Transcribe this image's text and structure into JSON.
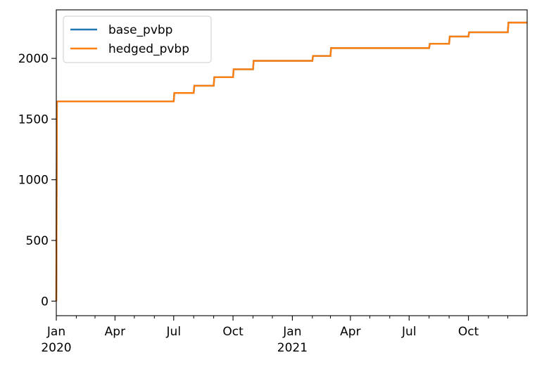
{
  "chart_data": {
    "type": "line",
    "title": "",
    "xlabel": "",
    "ylabel": "",
    "xlim": [
      "2020-01-01",
      "2021-12-31"
    ],
    "ylim": [
      -120,
      2400
    ],
    "yticks": [
      0,
      500,
      1000,
      1500,
      2000
    ],
    "xticks": [
      {
        "date": "2020-01-01",
        "label": "Jan",
        "sublabel": "2020"
      },
      {
        "date": "2020-04-01",
        "label": "Apr",
        "sublabel": ""
      },
      {
        "date": "2020-07-01",
        "label": "Jul",
        "sublabel": ""
      },
      {
        "date": "2020-10-01",
        "label": "Oct",
        "sublabel": ""
      },
      {
        "date": "2021-01-01",
        "label": "Jan",
        "sublabel": "2021"
      },
      {
        "date": "2021-04-01",
        "label": "Apr",
        "sublabel": ""
      },
      {
        "date": "2021-07-01",
        "label": "Jul",
        "sublabel": ""
      },
      {
        "date": "2021-10-01",
        "label": "Oct",
        "sublabel": ""
      }
    ],
    "grid": false,
    "legend": {
      "position": "top-left"
    },
    "series": [
      {
        "name": "base_pvbp",
        "color": "#1f77b4",
        "points": [
          [
            "2020-01-01",
            0
          ],
          [
            "2020-01-02",
            1645
          ],
          [
            "2020-07-01",
            1645
          ],
          [
            "2020-07-02",
            1715
          ],
          [
            "2020-08-01",
            1715
          ],
          [
            "2020-08-02",
            1775
          ],
          [
            "2020-09-01",
            1775
          ],
          [
            "2020-09-02",
            1845
          ],
          [
            "2020-10-01",
            1845
          ],
          [
            "2020-10-02",
            1910
          ],
          [
            "2020-11-01",
            1910
          ],
          [
            "2020-11-02",
            1980
          ],
          [
            "2021-02-01",
            1980
          ],
          [
            "2021-02-02",
            2020
          ],
          [
            "2021-03-01",
            2020
          ],
          [
            "2021-03-02",
            2085
          ],
          [
            "2021-08-01",
            2085
          ],
          [
            "2021-08-02",
            2120
          ],
          [
            "2021-09-01",
            2120
          ],
          [
            "2021-09-02",
            2180
          ],
          [
            "2021-10-01",
            2180
          ],
          [
            "2021-10-02",
            2215
          ],
          [
            "2021-12-01",
            2215
          ],
          [
            "2021-12-02",
            2295
          ],
          [
            "2021-12-31",
            2295
          ]
        ]
      },
      {
        "name": "hedged_pvbp",
        "color": "#ff7f0e",
        "points": [
          [
            "2020-01-01",
            0
          ],
          [
            "2020-01-02",
            1645
          ],
          [
            "2020-07-01",
            1645
          ],
          [
            "2020-07-02",
            1715
          ],
          [
            "2020-08-01",
            1715
          ],
          [
            "2020-08-02",
            1775
          ],
          [
            "2020-09-01",
            1775
          ],
          [
            "2020-09-02",
            1845
          ],
          [
            "2020-10-01",
            1845
          ],
          [
            "2020-10-02",
            1910
          ],
          [
            "2020-11-01",
            1910
          ],
          [
            "2020-11-02",
            1980
          ],
          [
            "2021-02-01",
            1980
          ],
          [
            "2021-02-02",
            2020
          ],
          [
            "2021-03-01",
            2020
          ],
          [
            "2021-03-02",
            2085
          ],
          [
            "2021-08-01",
            2085
          ],
          [
            "2021-08-02",
            2120
          ],
          [
            "2021-09-01",
            2120
          ],
          [
            "2021-09-02",
            2180
          ],
          [
            "2021-10-01",
            2180
          ],
          [
            "2021-10-02",
            2215
          ],
          [
            "2021-12-01",
            2215
          ],
          [
            "2021-12-02",
            2295
          ],
          [
            "2021-12-31",
            2295
          ]
        ]
      }
    ]
  }
}
